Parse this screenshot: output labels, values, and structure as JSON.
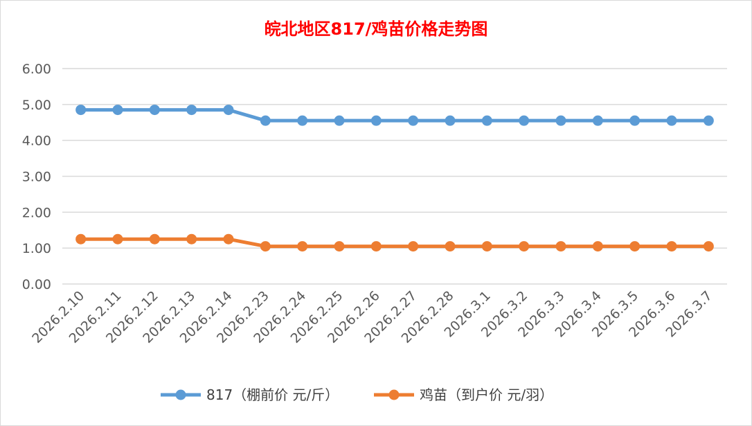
{
  "chart_data": {
    "type": "line",
    "title": "皖北地区817/鸡苗价格走势图",
    "xlabel": "",
    "ylabel": "",
    "ylim": [
      0,
      6
    ],
    "yticks": [
      "0.00",
      "1.00",
      "2.00",
      "3.00",
      "4.00",
      "5.00",
      "6.00"
    ],
    "grid": true,
    "legend_position": "bottom",
    "categories": [
      "2026.2.10",
      "2026.2.11",
      "2026.2.12",
      "2026.2.13",
      "2026.2.14",
      "2026.2.23",
      "2026.2.24",
      "2026.2.25",
      "2026.2.26",
      "2026.2.27",
      "2026.2.28",
      "2026.3.1",
      "2026.3.2",
      "2026.3.3",
      "2026.3.4",
      "2026.3.5",
      "2026.3.6",
      "2026.3.7"
    ],
    "series": [
      {
        "name": "817（棚前价 元/斤）",
        "color": "#5b9bd5",
        "values": [
          4.85,
          4.85,
          4.85,
          4.85,
          4.85,
          4.55,
          4.55,
          4.55,
          4.55,
          4.55,
          4.55,
          4.55,
          4.55,
          4.55,
          4.55,
          4.55,
          4.55,
          4.55
        ]
      },
      {
        "name": "鸡苗（到户价 元/羽）",
        "color": "#ed7d31",
        "values": [
          1.25,
          1.25,
          1.25,
          1.25,
          1.25,
          1.05,
          1.05,
          1.05,
          1.05,
          1.05,
          1.05,
          1.05,
          1.05,
          1.05,
          1.05,
          1.05,
          1.05,
          1.05
        ]
      }
    ]
  }
}
